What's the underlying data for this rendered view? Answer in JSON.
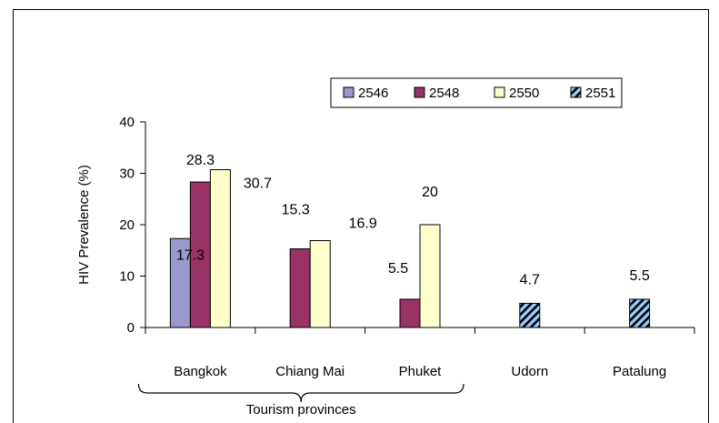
{
  "chart_data": {
    "type": "bar",
    "title": "",
    "xlabel": "",
    "ylabel": "HIV Prevalence (%)",
    "ylim": [
      0,
      40
    ],
    "yticks": [
      0,
      10,
      20,
      30,
      40
    ],
    "grid": false,
    "legend_position": "top-right",
    "categories": [
      "Bangkok",
      "Chiang Mai",
      "Phuket",
      "Udorn",
      "Patalung"
    ],
    "series": [
      {
        "name": "2546",
        "color": "#9999cc",
        "pattern": "solid",
        "values": [
          17.3,
          null,
          null,
          null,
          null
        ]
      },
      {
        "name": "2548",
        "color": "#993366",
        "pattern": "solid",
        "values": [
          28.3,
          15.3,
          5.5,
          null,
          null
        ]
      },
      {
        "name": "2550",
        "color": "#ffffcc",
        "pattern": "solid",
        "values": [
          30.7,
          16.9,
          20,
          null,
          null
        ]
      },
      {
        "name": "2551",
        "color": "#99ccff",
        "pattern": "hatched",
        "values": [
          null,
          null,
          null,
          4.7,
          5.5
        ]
      }
    ],
    "data_labels": [
      {
        "text": "17.3",
        "category": 0,
        "series": 0
      },
      {
        "text": "28.3",
        "category": 0,
        "series": 1
      },
      {
        "text": "30.7",
        "category": 0,
        "series": 2
      },
      {
        "text": "15.3",
        "category": 1,
        "series": 1
      },
      {
        "text": "16.9",
        "category": 1,
        "series": 2
      },
      {
        "text": "5.5",
        "category": 2,
        "series": 1
      },
      {
        "text": "20",
        "category": 2,
        "series": 2
      },
      {
        "text": "4.7",
        "category": 3,
        "series": 3
      },
      {
        "text": "5.5",
        "category": 4,
        "series": 3
      }
    ],
    "annotations": [
      {
        "text": "Tourism provinces",
        "spans_categories": [
          0,
          2
        ]
      }
    ]
  }
}
